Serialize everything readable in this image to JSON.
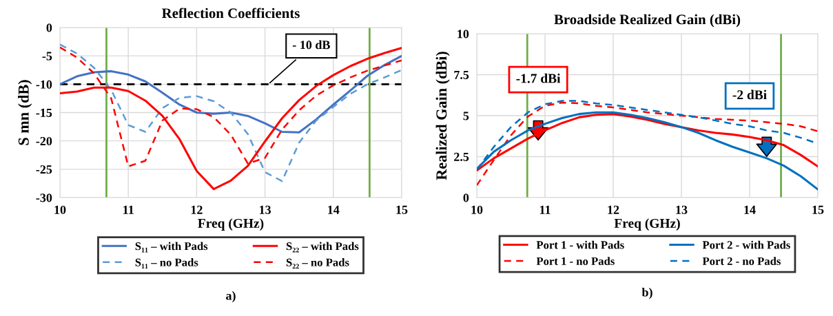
{
  "chart_data": [
    {
      "type": "line",
      "title": "Reflection Coefficients",
      "xlabel": "Freq (GHz)",
      "ylabel": "S mn (dB)",
      "x": [
        10,
        10.25,
        10.5,
        10.75,
        11,
        11.25,
        11.5,
        11.75,
        12,
        12.25,
        12.5,
        12.75,
        13,
        13.25,
        13.5,
        13.75,
        14,
        14.25,
        14.5,
        14.75,
        15
      ],
      "series": [
        {
          "name": "S₁₁ – with Pads",
          "color": "#4472c4",
          "line_style": "solid",
          "values": [
            -10,
            -8.6,
            -7.9,
            -7.7,
            -8.3,
            -9.5,
            -11.5,
            -13.6,
            -15.0,
            -15.2,
            -15.0,
            -15.6,
            -16.9,
            -18.4,
            -18.5,
            -16.2,
            -13.6,
            -11.1,
            -8.5,
            -6.6,
            -5.0
          ]
        },
        {
          "name": "S₁₁ – no Pads",
          "color": "#5b9bd5",
          "line_style": "dashed",
          "values": [
            -3,
            -4.6,
            -7.1,
            -11,
            -17.2,
            -18.4,
            -14.2,
            -12.4,
            -12.1,
            -13.0,
            -15.0,
            -18.8,
            -25.5,
            -27.1,
            -20.3,
            -16.4,
            -14.0,
            -11.7,
            -10.0,
            -8.8,
            -7.5
          ]
        },
        {
          "name": "S₂₂ – with Pads",
          "color": "#ff0000",
          "line_style": "solid",
          "values": [
            -11.6,
            -11.3,
            -10.6,
            -10.6,
            -11.2,
            -12.9,
            -15.6,
            -19.7,
            -25.3,
            -28.5,
            -27.0,
            -24.4,
            -20.1,
            -16.0,
            -12.8,
            -10.3,
            -8.4,
            -6.8,
            -5.5,
            -4.5,
            -3.6
          ]
        },
        {
          "name": "S₂₂ – no Pads",
          "color": "#ff0000",
          "line_style": "dashed",
          "values": [
            -3.5,
            -5.3,
            -8.1,
            -12.5,
            -24.5,
            -23.5,
            -16.4,
            -14.3,
            -14.4,
            -15.8,
            -18.9,
            -24.0,
            -23.0,
            -18.0,
            -14.6,
            -12.0,
            -10.2,
            -8.8,
            -7.6,
            -6.7,
            -5.8
          ]
        }
      ],
      "xlim": [
        10,
        15
      ],
      "xticks": [
        10,
        11,
        12,
        13,
        14,
        15
      ],
      "ylim": [
        -30,
        0
      ],
      "yticks": [
        -30,
        -25,
        -20,
        -15,
        -10,
        -5,
        0
      ],
      "ref_lines": [
        {
          "axis": "y",
          "value": -10,
          "label": "- 10 dB",
          "color": "#000000",
          "line_style": "dashed"
        },
        {
          "axis": "x",
          "value": 10.68,
          "color": "#70ad47",
          "line_style": "solid"
        },
        {
          "axis": "x",
          "value": 14.53,
          "color": "#70ad47",
          "line_style": "solid"
        }
      ],
      "annotations": [
        "a)"
      ],
      "grid": true,
      "legend": "bottom",
      "marker": "none"
    },
    {
      "type": "line",
      "title": "Broadside Realized Gain (dBi)",
      "xlabel": "Freq (GHz)",
      "ylabel": "Realized Gain (dBi)",
      "x": [
        10,
        10.25,
        10.5,
        10.75,
        11,
        11.25,
        11.5,
        11.75,
        12,
        12.25,
        12.5,
        12.75,
        13,
        13.25,
        13.5,
        13.75,
        14,
        14.25,
        14.5,
        14.75,
        15
      ],
      "series": [
        {
          "name": "Port 1 - with Pads",
          "color": "#ff0000",
          "line_style": "solid",
          "values": [
            1.65,
            2.4,
            3.0,
            3.6,
            4.1,
            4.55,
            4.9,
            5.05,
            5.1,
            4.95,
            4.75,
            4.5,
            4.3,
            4.1,
            3.95,
            3.85,
            3.7,
            3.5,
            3.2,
            2.6,
            1.9
          ]
        },
        {
          "name": "Port 1 - no Pads",
          "color": "#ff0000",
          "line_style": "dashed",
          "values": [
            0.75,
            2.3,
            3.8,
            4.95,
            5.6,
            5.8,
            5.75,
            5.6,
            5.5,
            5.35,
            5.2,
            5.1,
            5.0,
            4.9,
            4.8,
            4.75,
            4.7,
            4.6,
            4.5,
            4.35,
            4.05
          ]
        },
        {
          "name": "Port 2 - with Pads",
          "color": "#0070c0",
          "line_style": "solid",
          "values": [
            1.75,
            2.8,
            3.5,
            4.1,
            4.5,
            4.85,
            5.1,
            5.2,
            5.2,
            5.05,
            4.85,
            4.6,
            4.3,
            3.95,
            3.5,
            3.1,
            2.75,
            2.4,
            1.95,
            1.3,
            0.5
          ]
        },
        {
          "name": "Port 2 - no Pads",
          "color": "#0070c0",
          "line_style": "dashed",
          "values": [
            1.7,
            3.1,
            4.3,
            5.2,
            5.7,
            5.9,
            5.9,
            5.75,
            5.65,
            5.5,
            5.35,
            5.2,
            5.05,
            4.9,
            4.7,
            4.5,
            4.35,
            4.1,
            3.95,
            3.65,
            3.3
          ]
        }
      ],
      "xlim": [
        10,
        15
      ],
      "xticks": [
        10,
        11,
        12,
        13,
        14,
        15
      ],
      "ylim": [
        0,
        10
      ],
      "yticks": [
        0,
        2.5,
        5,
        7.5,
        10
      ],
      "ref_lines": [
        {
          "axis": "x",
          "value": 10.74,
          "color": "#70ad47",
          "line_style": "solid"
        },
        {
          "axis": "x",
          "value": 14.46,
          "color": "#70ad47",
          "line_style": "solid"
        }
      ],
      "annotations": [
        "-1.7 dBi",
        "-2 dBi",
        "b)"
      ],
      "grid": true,
      "legend": "bottom",
      "marker": "none"
    }
  ]
}
